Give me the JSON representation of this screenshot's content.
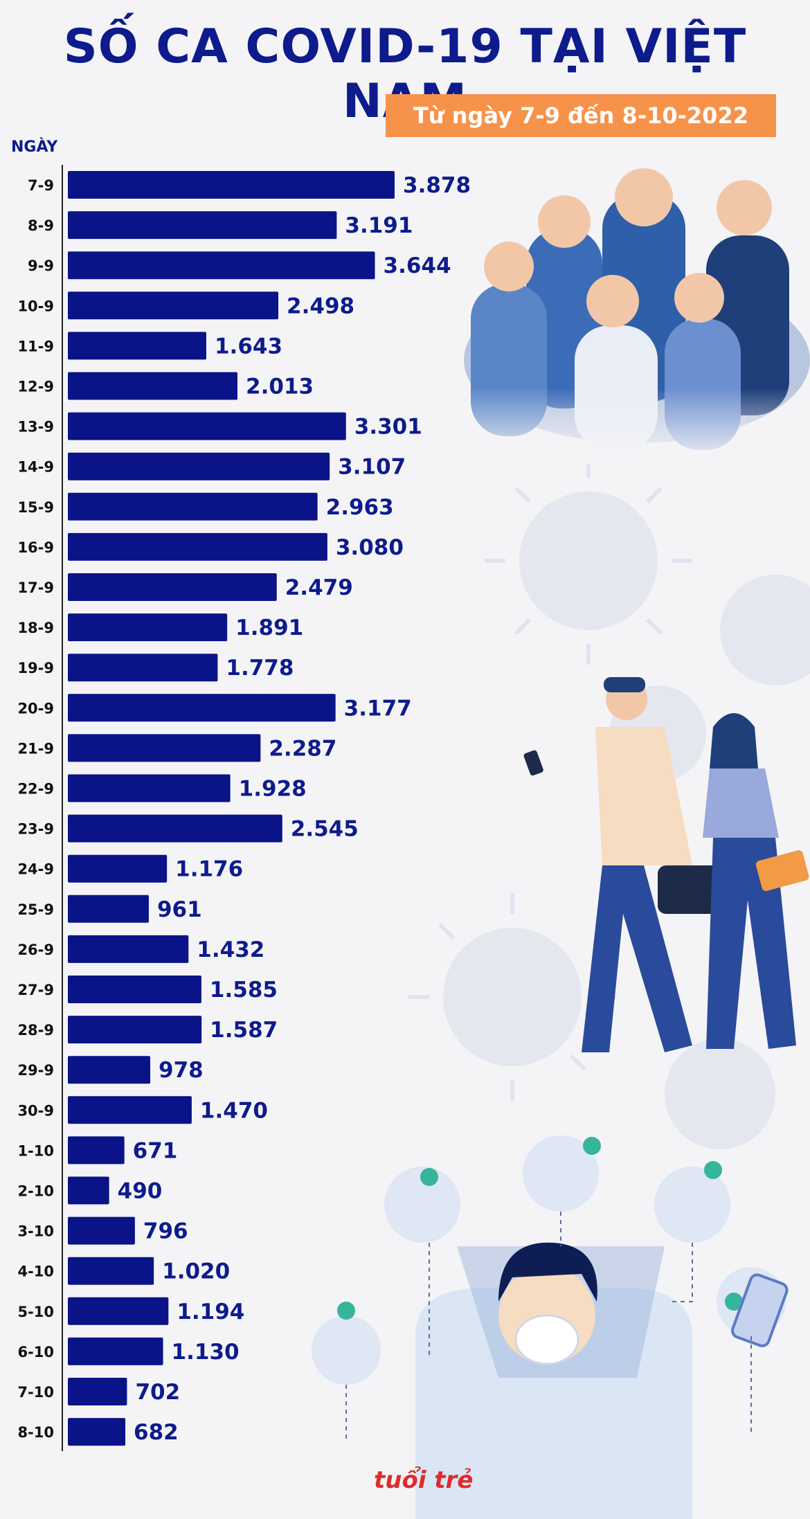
{
  "header": {
    "title": "SỐ CA COVID-19 TẠI VIỆT NAM",
    "subtitle": "Từ ngày 7-9 đến 8-10-2022",
    "axis_label": "NGÀY"
  },
  "brand": {
    "logo_text": "tuổi trẻ"
  },
  "colors": {
    "bar": "#0a1488",
    "title": "#0d1b8c",
    "subtitle_bg": "#f7924a"
  },
  "chart_data": {
    "type": "bar",
    "orientation": "horizontal",
    "ylabel": "NGÀY",
    "categories": [
      "7-9",
      "8-9",
      "9-9",
      "10-9",
      "11-9",
      "12-9",
      "13-9",
      "14-9",
      "15-9",
      "16-9",
      "17-9",
      "18-9",
      "19-9",
      "20-9",
      "21-9",
      "22-9",
      "23-9",
      "24-9",
      "25-9",
      "26-9",
      "27-9",
      "28-9",
      "29-9",
      "30-9",
      "1-10",
      "2-10",
      "3-10",
      "4-10",
      "5-10",
      "6-10",
      "7-10",
      "8-10"
    ],
    "values": [
      3878,
      3191,
      3644,
      2498,
      1643,
      2013,
      3301,
      3107,
      2963,
      3080,
      2479,
      1891,
      1778,
      3177,
      2287,
      1928,
      2545,
      1176,
      961,
      1432,
      1585,
      1587,
      978,
      1470,
      671,
      490,
      796,
      1020,
      1194,
      1130,
      702,
      682
    ],
    "labels": [
      "3.878",
      "3.191",
      "3.644",
      "2.498",
      "1.643",
      "2.013",
      "3.301",
      "3.107",
      "2.963",
      "3.080",
      "2.479",
      "1.891",
      "1.778",
      "3.177",
      "2.287",
      "1.928",
      "2.545",
      "1.176",
      "961",
      "1.432",
      "1.585",
      "1.587",
      "978",
      "1.470",
      "671",
      "490",
      "796",
      "1.020",
      "1.194",
      "1.130",
      "702",
      "682"
    ]
  }
}
